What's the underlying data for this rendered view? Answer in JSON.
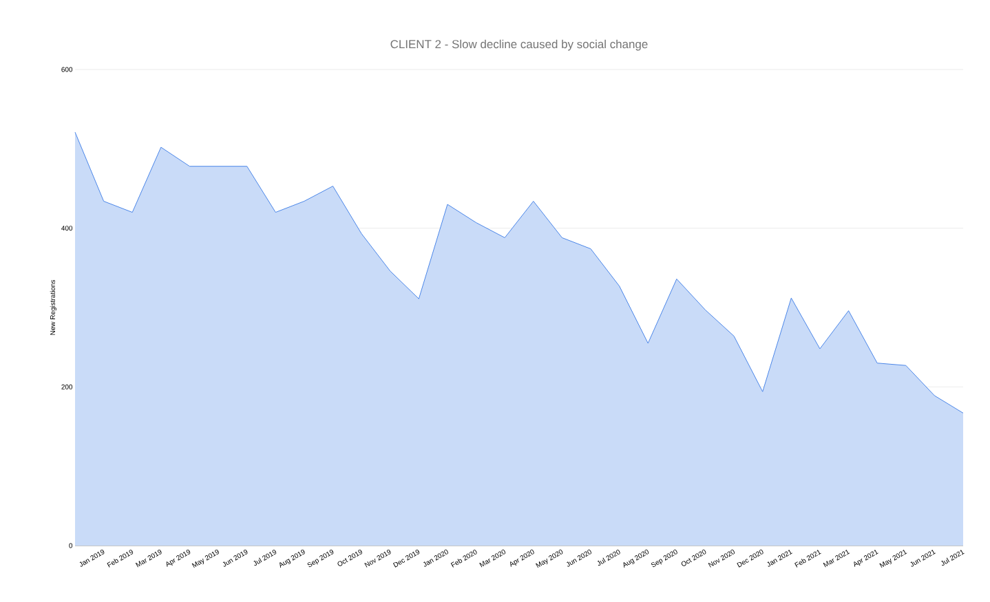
{
  "chart_data": {
    "type": "area",
    "title": "CLIENT 2 - Slow decline caused by social change",
    "ylabel": "New Registrations",
    "categories": [
      null,
      "Jan 2019",
      "Feb 2019",
      "Mar 2019",
      "Apr 2019",
      "May 2019",
      "Jun 2019",
      "Jul 2019",
      "Aug 2019",
      "Sep 2019",
      "Oct 2019",
      "Nov 2019",
      "Dec 2019",
      "Jan 2020",
      "Feb 2020",
      "Mar 2020",
      "Apr 2020",
      "May 2020",
      "Jun 2020",
      "Jul 2020",
      "Aug 2020",
      "Sep 2020",
      "Oct 2020",
      "Nov 2020",
      "Dec 2020",
      "Jan 2021",
      "Feb 2021",
      "Mar 2021",
      "Apr 2021",
      "May 2021",
      "Jun 2021",
      "Jul 2021"
    ],
    "series": [
      {
        "color": "#4a86e8",
        "values": [
          521,
          434,
          420,
          502,
          478,
          478,
          478,
          420,
          434,
          453,
          393,
          346,
          311,
          430,
          407,
          388,
          434,
          388,
          374,
          327,
          255,
          336,
          297,
          264,
          194,
          312,
          248,
          296,
          230,
          227,
          189,
          167
        ]
      }
    ],
    "ylim": [
      0,
      600
    ],
    "yticks": [
      0,
      200,
      400,
      600
    ],
    "grid": "y"
  }
}
